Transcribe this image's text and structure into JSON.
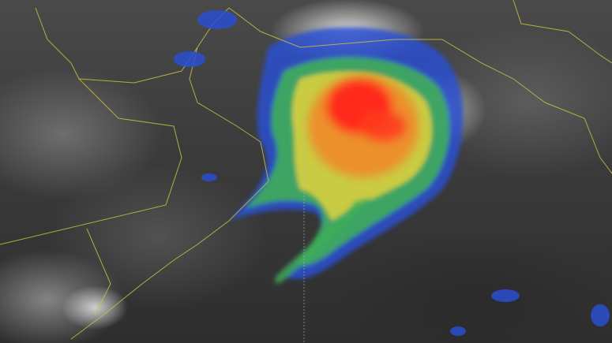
{
  "image": {
    "subject": "cyclone-satellite-view",
    "colors": {
      "core": "#ff2a1a",
      "orange": "#f08a2a",
      "yellow": "#d8d040",
      "green": "#3fae5a",
      "blue": "#2a4fd0",
      "coastline": "#c8c040",
      "background": "#3a3a3a"
    }
  }
}
